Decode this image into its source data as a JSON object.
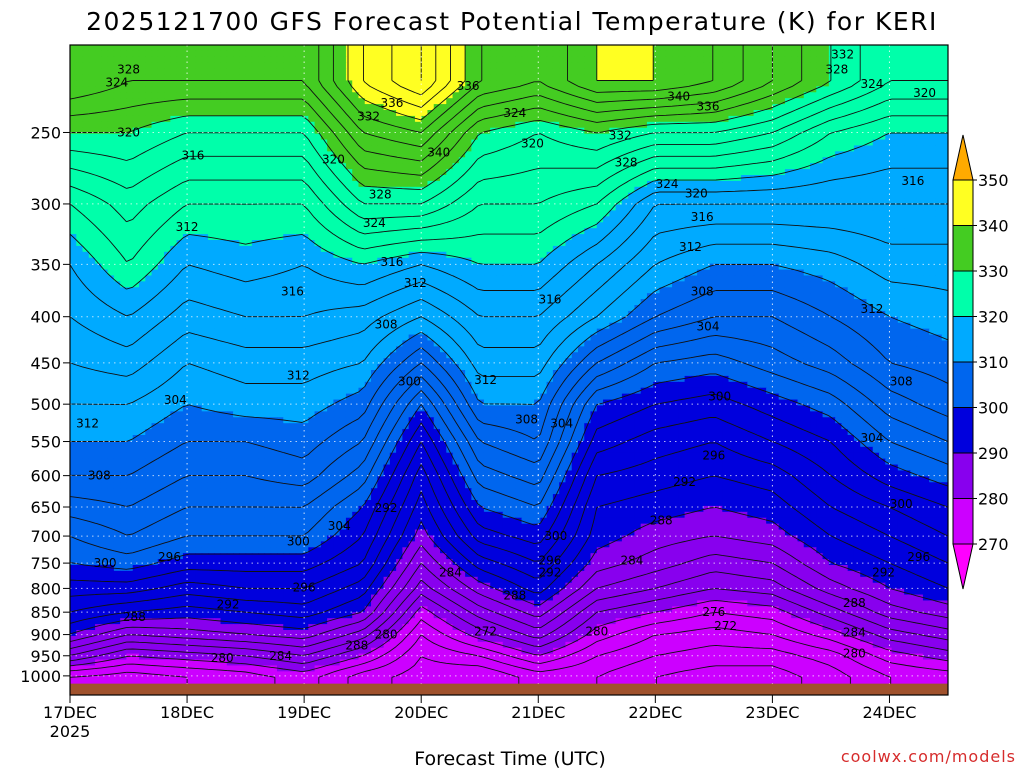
{
  "chart_data": {
    "type": "heatmap",
    "title": "2025121700 GFS Forecast Potential Temperature (K) for KERI",
    "xlabel": "Forecast Time (UTC)",
    "ylabel": "",
    "credit": "coolwx.com/models",
    "x_ticks": [
      {
        "label": "17DEC",
        "sub": "2025",
        "day": 0
      },
      {
        "label": "18DEC",
        "day": 1
      },
      {
        "label": "19DEC",
        "day": 2
      },
      {
        "label": "20DEC",
        "day": 3
      },
      {
        "label": "21DEC",
        "day": 4
      },
      {
        "label": "22DEC",
        "day": 5
      },
      {
        "label": "23DEC",
        "day": 6
      },
      {
        "label": "24DEC",
        "day": 7
      }
    ],
    "xlim_days": [
      0,
      7.5
    ],
    "y_axis": {
      "scale": "log-pressure",
      "reversed": true,
      "ylim_hpa": [
        1050,
        200
      ],
      "ticks": [
        "250",
        "300",
        "350",
        "400",
        "450",
        "500",
        "550",
        "600",
        "650",
        "700",
        "750",
        "800",
        "850",
        "900",
        "950",
        "1000"
      ]
    },
    "grid": true,
    "colorbar": {
      "levels": [
        270,
        280,
        290,
        300,
        310,
        320,
        330,
        340,
        350
      ],
      "labels": [
        "270",
        "280",
        "290",
        "300",
        "310",
        "320",
        "330",
        "340",
        "350"
      ],
      "colors": [
        "#ff00ff",
        "#cc00ff",
        "#8800ee",
        "#0000dd",
        "#0066ee",
        "#00aaff",
        "#00ffaa",
        "#44cc22",
        "#ffff22",
        "#ffaa00"
      ],
      "extend": "both"
    },
    "isentrope_interval_K": 2,
    "isentrope_profiles": {
      "pressure_levels_hpa": [
        1000,
        950,
        900,
        850,
        800,
        750,
        700,
        650,
        600,
        550,
        500,
        450,
        400,
        350,
        300,
        250,
        220
      ],
      "days": [
        0,
        0.5,
        1,
        1.5,
        2,
        2.5,
        3,
        3.5,
        4,
        4.5,
        5,
        5.5,
        6,
        6.5,
        7,
        7.5
      ],
      "theta_K": [
        [
          276,
          284,
          290,
          294,
          297,
          300,
          302,
          305,
          308,
          310,
          312,
          314,
          316,
          318,
          322,
          330,
          336
        ],
        [
          275,
          280,
          286,
          292,
          297,
          301,
          304,
          306,
          308,
          310,
          312,
          315,
          318,
          322,
          325,
          330,
          334
        ],
        [
          276,
          281,
          287,
          291,
          295,
          299,
          302,
          304,
          306,
          308,
          310,
          312,
          315,
          318,
          322,
          328,
          334
        ],
        [
          277,
          282,
          288,
          292,
          296,
          299,
          302,
          304,
          306,
          308,
          311,
          313,
          316,
          319,
          322,
          328,
          334
        ],
        [
          279,
          284,
          289,
          293,
          296,
          299,
          302,
          304,
          307,
          309,
          311,
          313,
          316,
          318,
          322,
          328,
          334
        ],
        [
          275,
          280,
          285,
          290,
          293,
          296,
          298,
          300,
          303,
          306,
          309,
          312,
          315,
          320,
          328,
          336,
          342
        ],
        [
          273,
          274,
          276,
          279,
          283,
          286,
          289,
          291,
          293,
          296,
          300,
          306,
          312,
          318,
          328,
          338,
          346
        ],
        [
          272,
          276,
          281,
          285,
          289,
          293,
          297,
          300,
          303,
          306,
          310,
          313,
          316,
          320,
          324,
          330,
          338
        ],
        [
          275,
          280,
          285,
          289,
          293,
          296,
          299,
          302,
          305,
          308,
          310,
          313,
          316,
          320,
          324,
          328,
          336
        ],
        [
          274,
          276,
          279,
          282,
          286,
          289,
          291,
          292,
          294,
          297,
          300,
          306,
          312,
          316,
          322,
          330,
          340
        ],
        [
          272,
          274,
          276,
          280,
          284,
          287,
          289,
          291,
          293,
          295,
          298,
          302,
          308,
          312,
          316,
          328,
          340
        ],
        [
          271,
          273,
          275,
          278,
          282,
          285,
          288,
          290,
          292,
          294,
          297,
          301,
          306,
          310,
          316,
          328,
          338
        ],
        [
          271,
          273,
          276,
          279,
          283,
          286,
          289,
          291,
          293,
          296,
          299,
          303,
          306,
          310,
          316,
          326,
          334
        ],
        [
          273,
          275,
          279,
          283,
          287,
          290,
          292,
          294,
          296,
          298,
          301,
          305,
          308,
          311,
          316,
          322,
          330
        ],
        [
          276,
          279,
          283,
          287,
          290,
          292,
          294,
          296,
          299,
          302,
          305,
          308,
          310,
          313,
          316,
          320,
          326
        ],
        [
          277,
          281,
          285,
          289,
          292,
          294,
          296,
          298,
          301,
          304,
          307,
          309,
          311,
          313,
          316,
          320,
          326
        ]
      ]
    },
    "contour_labels": [
      {
        "text": "328",
        "day": 0.5,
        "hpa": 213
      },
      {
        "text": "324",
        "day": 0.4,
        "hpa": 220
      },
      {
        "text": "320",
        "day": 0.5,
        "hpa": 250
      },
      {
        "text": "316",
        "day": 1.05,
        "hpa": 265
      },
      {
        "text": "312",
        "day": 1.0,
        "hpa": 318
      },
      {
        "text": "316",
        "day": 1.9,
        "hpa": 375
      },
      {
        "text": "312",
        "day": 1.95,
        "hpa": 465
      },
      {
        "text": "304",
        "day": 0.9,
        "hpa": 495
      },
      {
        "text": "312",
        "day": 0.15,
        "hpa": 525
      },
      {
        "text": "308",
        "day": 0.25,
        "hpa": 600
      },
      {
        "text": "300",
        "day": 0.3,
        "hpa": 750
      },
      {
        "text": "296",
        "day": 0.85,
        "hpa": 738
      },
      {
        "text": "288",
        "day": 0.55,
        "hpa": 860
      },
      {
        "text": "292",
        "day": 1.35,
        "hpa": 833
      },
      {
        "text": "300",
        "day": 1.95,
        "hpa": 710
      },
      {
        "text": "304",
        "day": 2.3,
        "hpa": 682
      },
      {
        "text": "296",
        "day": 2.0,
        "hpa": 798
      },
      {
        "text": "280",
        "day": 1.3,
        "hpa": 955
      },
      {
        "text": "284",
        "day": 1.8,
        "hpa": 950
      },
      {
        "text": "288",
        "day": 2.45,
        "hpa": 925
      },
      {
        "text": "280",
        "day": 2.7,
        "hpa": 900
      },
      {
        "text": "336",
        "day": 2.75,
        "hpa": 232
      },
      {
        "text": "332",
        "day": 2.55,
        "hpa": 240
      },
      {
        "text": "340",
        "day": 3.15,
        "hpa": 263
      },
      {
        "text": "320",
        "day": 2.25,
        "hpa": 268
      },
      {
        "text": "328",
        "day": 2.65,
        "hpa": 293
      },
      {
        "text": "324",
        "day": 2.6,
        "hpa": 315
      },
      {
        "text": "316",
        "day": 2.75,
        "hpa": 348
      },
      {
        "text": "312",
        "day": 2.95,
        "hpa": 367
      },
      {
        "text": "308",
        "day": 2.7,
        "hpa": 408
      },
      {
        "text": "300",
        "day": 2.9,
        "hpa": 472
      },
      {
        "text": "292",
        "day": 2.7,
        "hpa": 652
      },
      {
        "text": "284",
        "day": 3.25,
        "hpa": 768
      },
      {
        "text": "272",
        "day": 3.55,
        "hpa": 893
      },
      {
        "text": "288",
        "day": 3.8,
        "hpa": 815
      },
      {
        "text": "336",
        "day": 3.4,
        "hpa": 222
      },
      {
        "text": "324",
        "day": 3.8,
        "hpa": 238
      },
      {
        "text": "320",
        "day": 3.95,
        "hpa": 257
      },
      {
        "text": "316",
        "day": 4.1,
        "hpa": 383
      },
      {
        "text": "312",
        "day": 3.55,
        "hpa": 470
      },
      {
        "text": "308",
        "day": 3.9,
        "hpa": 520
      },
      {
        "text": "304",
        "day": 4.2,
        "hpa": 525
      },
      {
        "text": "300",
        "day": 4.15,
        "hpa": 700
      },
      {
        "text": "296",
        "day": 4.1,
        "hpa": 745
      },
      {
        "text": "292",
        "day": 4.1,
        "hpa": 768
      },
      {
        "text": "280",
        "day": 4.5,
        "hpa": 893
      },
      {
        "text": "340",
        "day": 5.2,
        "hpa": 228
      },
      {
        "text": "336",
        "day": 5.45,
        "hpa": 234
      },
      {
        "text": "332",
        "day": 4.7,
        "hpa": 252
      },
      {
        "text": "328",
        "day": 4.75,
        "hpa": 270
      },
      {
        "text": "324",
        "day": 5.1,
        "hpa": 285
      },
      {
        "text": "320",
        "day": 5.35,
        "hpa": 292
      },
      {
        "text": "316",
        "day": 5.4,
        "hpa": 310
      },
      {
        "text": "312",
        "day": 5.3,
        "hpa": 335
      },
      {
        "text": "308",
        "day": 5.4,
        "hpa": 375
      },
      {
        "text": "304",
        "day": 5.45,
        "hpa": 410
      },
      {
        "text": "300",
        "day": 5.55,
        "hpa": 490
      },
      {
        "text": "296",
        "day": 5.5,
        "hpa": 570
      },
      {
        "text": "292",
        "day": 5.25,
        "hpa": 610
      },
      {
        "text": "288",
        "day": 5.05,
        "hpa": 673
      },
      {
        "text": "284",
        "day": 4.8,
        "hpa": 745
      },
      {
        "text": "276",
        "day": 5.5,
        "hpa": 850
      },
      {
        "text": "272",
        "day": 5.6,
        "hpa": 880
      },
      {
        "text": "332",
        "day": 6.6,
        "hpa": 205
      },
      {
        "text": "328",
        "day": 6.55,
        "hpa": 213
      },
      {
        "text": "324",
        "day": 6.85,
        "hpa": 221
      },
      {
        "text": "320",
        "day": 7.3,
        "hpa": 226
      },
      {
        "text": "316",
        "day": 7.2,
        "hpa": 283
      },
      {
        "text": "312",
        "day": 6.85,
        "hpa": 392
      },
      {
        "text": "308",
        "day": 7.1,
        "hpa": 472
      },
      {
        "text": "304",
        "day": 6.85,
        "hpa": 545
      },
      {
        "text": "300",
        "day": 7.1,
        "hpa": 645
      },
      {
        "text": "296",
        "day": 7.25,
        "hpa": 738
      },
      {
        "text": "292",
        "day": 6.95,
        "hpa": 768
      },
      {
        "text": "288",
        "day": 6.7,
        "hpa": 830
      },
      {
        "text": "284",
        "day": 6.7,
        "hpa": 895
      },
      {
        "text": "280",
        "day": 6.7,
        "hpa": 945
      }
    ]
  }
}
